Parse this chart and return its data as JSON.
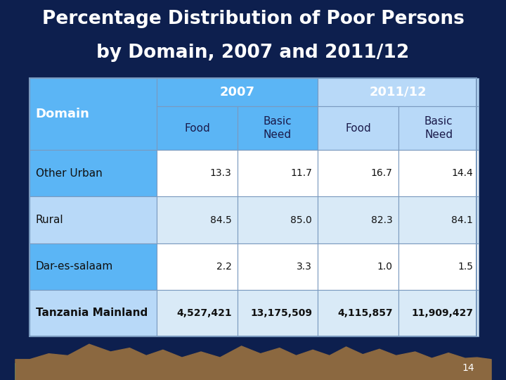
{
  "title_line1": "Percentage Distribution of Poor Persons",
  "title_line2": "by Domain, 2007 and 2011/12",
  "bg_color": "#0d1f4e",
  "title_color": "#ffffff",
  "domain_label": "Domain",
  "year_headers": [
    "2007",
    "2011/12"
  ],
  "sub_headers": [
    "Food",
    "Basic\nNeed",
    "Food",
    "Basic\nNeed"
  ],
  "rows": [
    {
      "label": "Other Urban",
      "values": [
        "13.3",
        "11.7",
        "16.7",
        "14.4"
      ],
      "bold": false
    },
    {
      "label": "Rural",
      "values": [
        "84.5",
        "85.0",
        "82.3",
        "84.1"
      ],
      "bold": false
    },
    {
      "label": "Dar-es-salaam",
      "values": [
        "2.2",
        "3.3",
        "1.0",
        "1.5"
      ],
      "bold": false
    },
    {
      "label": "Tanzania Mainland",
      "values": [
        "4,527,421",
        "13,175,509",
        "4,115,857",
        "11,909,427"
      ],
      "bold": true
    }
  ],
  "bright_blue": "#5bb5f5",
  "light_blue": "#b8d9f8",
  "row_bg_even": "#ffffff",
  "row_bg_odd": "#d9eaf7",
  "page_number": "14"
}
